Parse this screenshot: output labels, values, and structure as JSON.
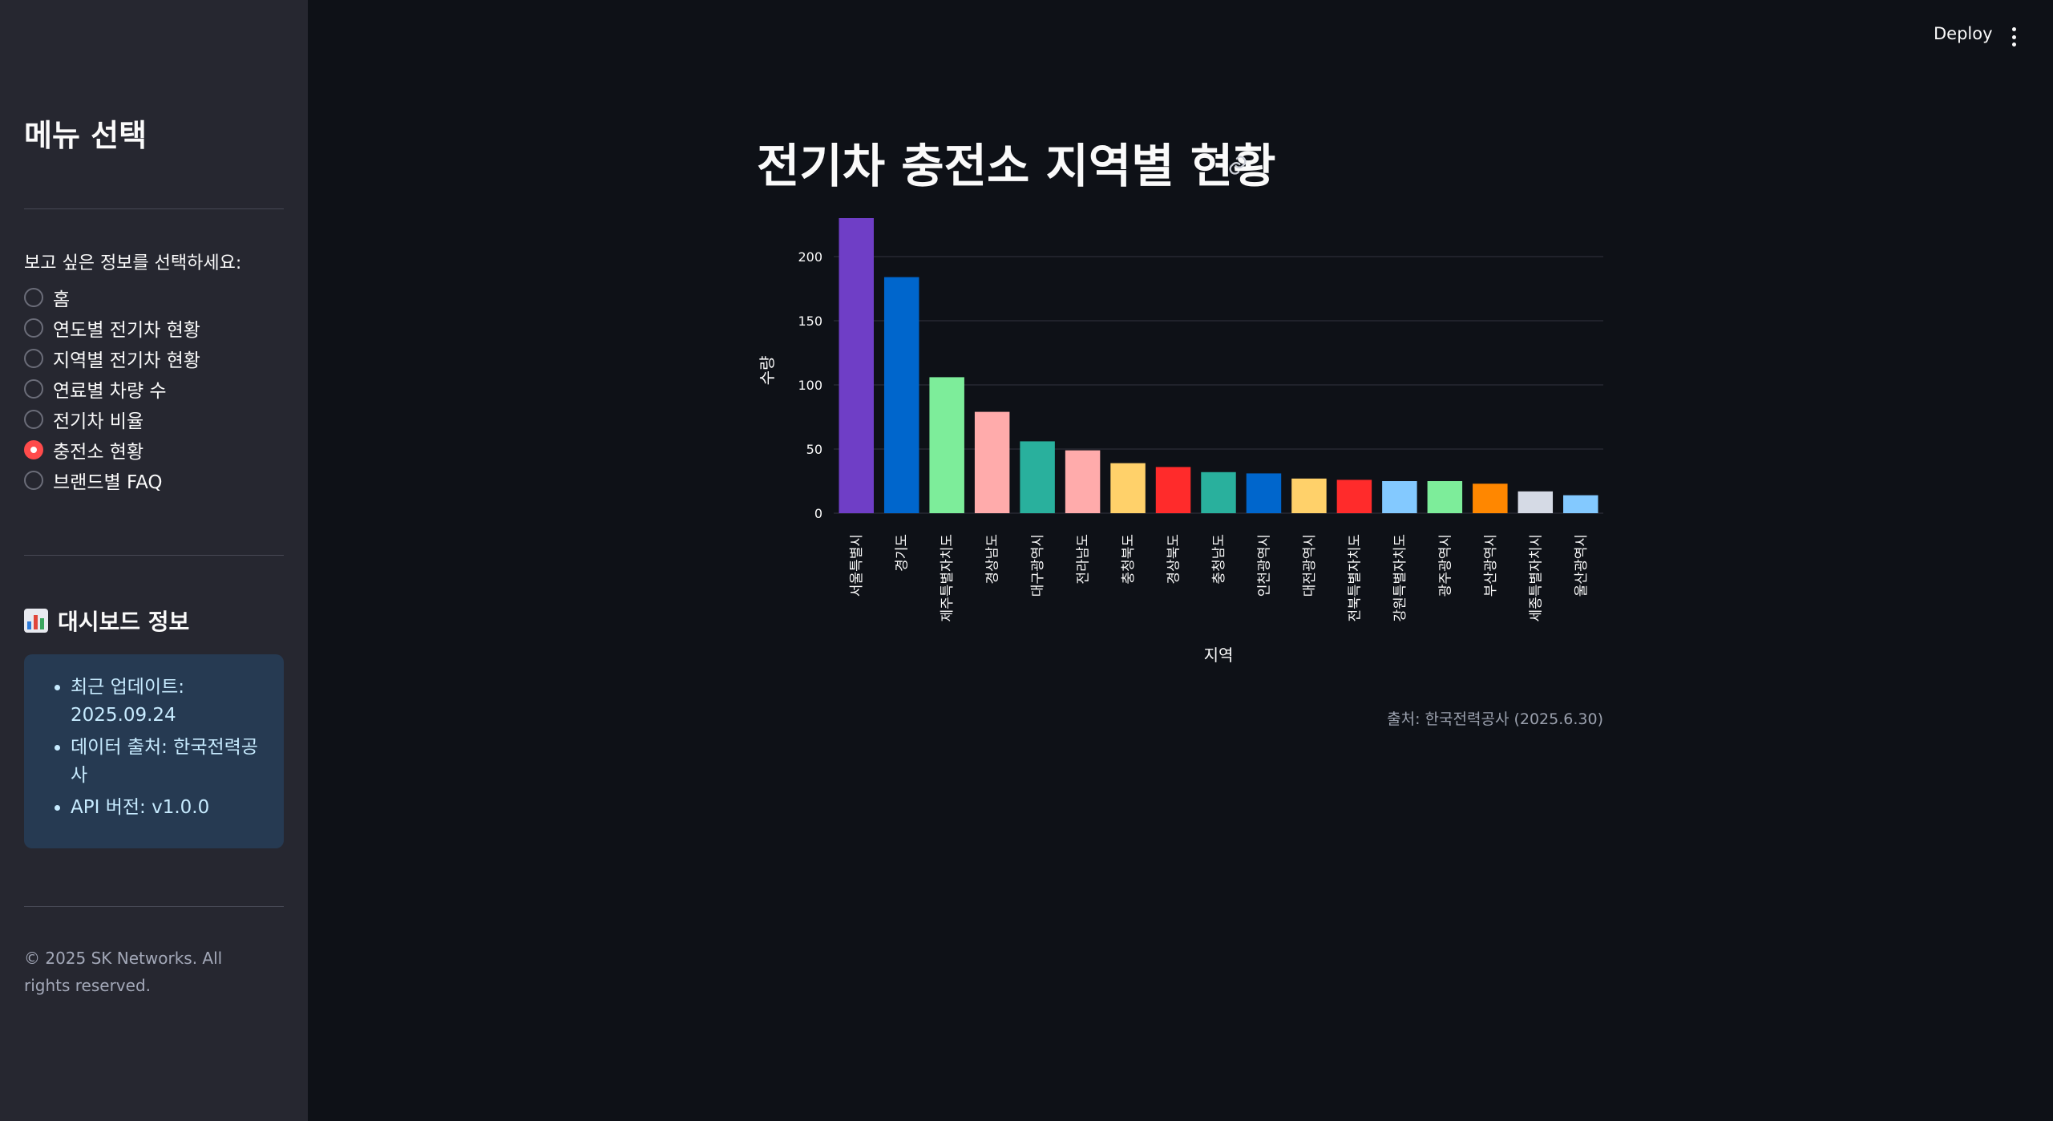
{
  "header": {
    "deploy_label": "Deploy",
    "menu_icon": "kebab-menu-icon"
  },
  "sidebar": {
    "title": "메뉴 선택",
    "radio_label": "보고 싶은 정보를 선택하세요:",
    "options": [
      "홈",
      "연도별 전기차 현황",
      "지역별 전기차 현황",
      "연료별 차량 수",
      "전기차 비율",
      "충전소 현황",
      "브랜드별 FAQ"
    ],
    "selected": "충전소 현황",
    "info_title": "대시보드 정보",
    "info_icon": "bar-chart-icon",
    "info_items": [
      "최근 업데이트: 2025.09.24",
      "데이터 출처: 한국전력공사",
      "API 버전: v1.0.0"
    ],
    "footer": "© 2025 SK Networks. All rights reserved."
  },
  "main": {
    "title": "전기차 충전소 지역별 현황",
    "caption": "출처: 한국전력공사 (2025.6.30)"
  },
  "chart_data": {
    "type": "bar",
    "xlabel": "지역",
    "ylabel": "수량",
    "ylim": [
      0,
      230
    ],
    "yticks": [
      0,
      50,
      100,
      150,
      200
    ],
    "grid": true,
    "categories": [
      "서울특별시",
      "경기도",
      "제주특별자치도",
      "경상남도",
      "대구광역시",
      "전라남도",
      "충청북도",
      "경상북도",
      "충청남도",
      "인천광역시",
      "대전광역시",
      "전북특별자치도",
      "강원특별자치도",
      "광주광역시",
      "부산광역시",
      "세종특별자치시",
      "울산광역시"
    ],
    "values": [
      230,
      184,
      106,
      79,
      56,
      49,
      39,
      36,
      32,
      31,
      27,
      26,
      25,
      25,
      23,
      17,
      14
    ],
    "colors": [
      "#6f3ec6",
      "#0066cc",
      "#7ded9a",
      "#ffabab",
      "#29b09d",
      "#ffabab",
      "#ffd16a",
      "#ff2b2b",
      "#29b09d",
      "#0066cc",
      "#ffd16a",
      "#ff2b2b",
      "#83c9ff",
      "#7ded9a",
      "#ff8700",
      "#d5dae5",
      "#83c9ff"
    ]
  }
}
